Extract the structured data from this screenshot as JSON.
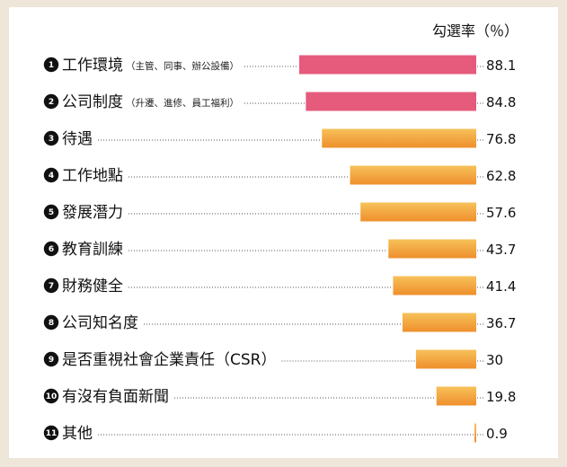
{
  "chart_data": {
    "type": "bar",
    "orientation": "horizontal",
    "unit_label": "勾選率（％）",
    "categories": [
      {
        "rank": "1",
        "label": "工作環境",
        "note": "（主管、同事、辦公設備）"
      },
      {
        "rank": "2",
        "label": "公司制度",
        "note": "（升遷、進修、員工福利）"
      },
      {
        "rank": "3",
        "label": "待遇",
        "note": ""
      },
      {
        "rank": "4",
        "label": "工作地點",
        "note": ""
      },
      {
        "rank": "5",
        "label": "發展潛力",
        "note": ""
      },
      {
        "rank": "6",
        "label": "教育訓練",
        "note": ""
      },
      {
        "rank": "7",
        "label": "財務健全",
        "note": ""
      },
      {
        "rank": "8",
        "label": "公司知名度",
        "note": ""
      },
      {
        "rank": "9",
        "label": "是否重視社會企業責任（CSR）",
        "note": ""
      },
      {
        "rank": "10",
        "label": "有沒有負面新聞",
        "note": ""
      },
      {
        "rank": "11",
        "label": "其他",
        "note": ""
      }
    ],
    "values": [
      88.1,
      84.8,
      76.8,
      62.8,
      57.6,
      43.7,
      41.4,
      36.7,
      30,
      19.8,
      0.9
    ],
    "value_labels": [
      "88.1",
      "84.8",
      "76.8",
      "62.8",
      "57.6",
      "43.7",
      "41.4",
      "36.7",
      "30",
      "19.8",
      "0.9"
    ],
    "xlim": [
      0,
      100
    ],
    "colors": {
      "highlight": "#e65a7c",
      "bar_top": "#f7c15a",
      "bar_bottom": "#ee8f2c",
      "badge": "#111111",
      "leader": "#555555"
    },
    "highlight_count": 2,
    "grid": false,
    "legend": "none"
  }
}
